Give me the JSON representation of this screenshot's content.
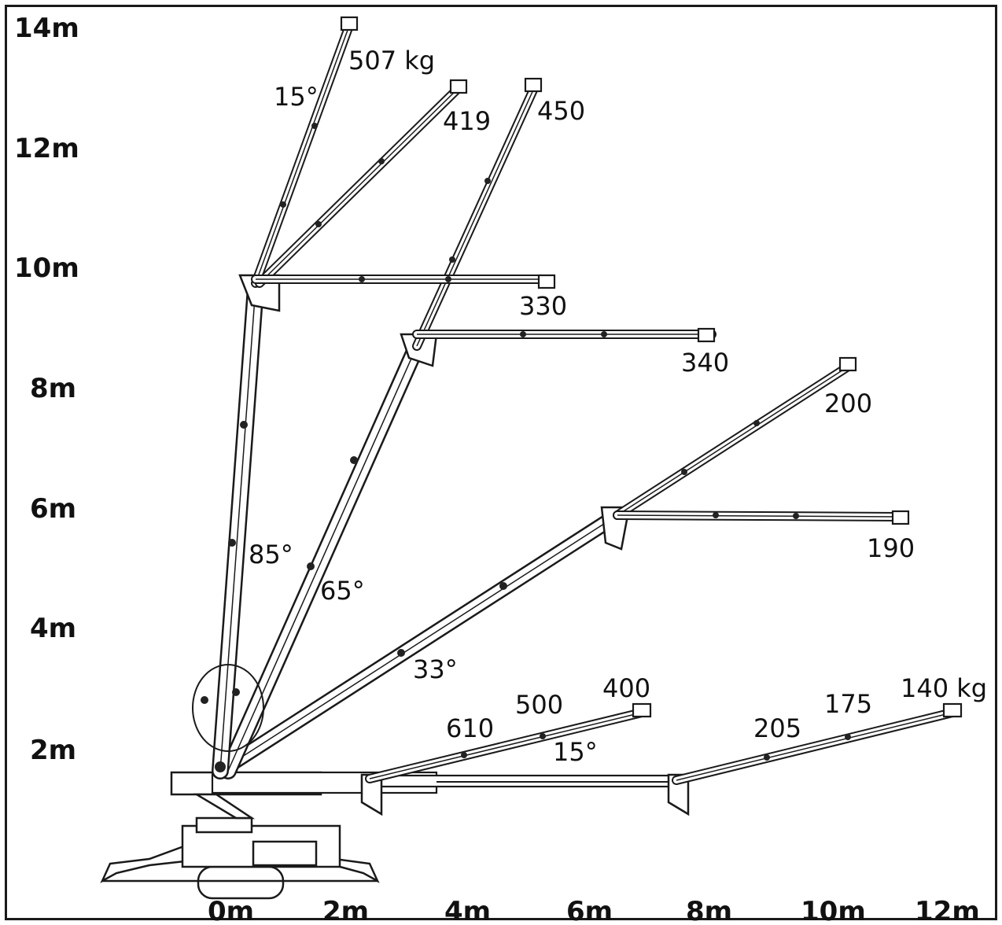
{
  "y_axis": [
    "14m",
    "12m",
    "10m",
    "8m",
    "6m",
    "4m",
    "2m"
  ],
  "x_axis": [
    "0m",
    "2m",
    "4m",
    "6m",
    "8m",
    "10m",
    "12m"
  ],
  "load_labels": {
    "l507": "507 kg",
    "l419": "419",
    "l450": "450",
    "l330": "330",
    "l340": "340",
    "l200": "200",
    "l190": "190",
    "l610": "610",
    "l500": "500",
    "l400": "400",
    "l205": "205",
    "l175": "175",
    "l140": "140 kg"
  },
  "angle_labels": {
    "a15_top": "15°",
    "a85": "85°",
    "a65": "65°",
    "a33": "33°",
    "a15_low": "15°"
  },
  "colors": {
    "line": "#1a1a1a",
    "background": "#ffffff",
    "text": "#111111"
  }
}
